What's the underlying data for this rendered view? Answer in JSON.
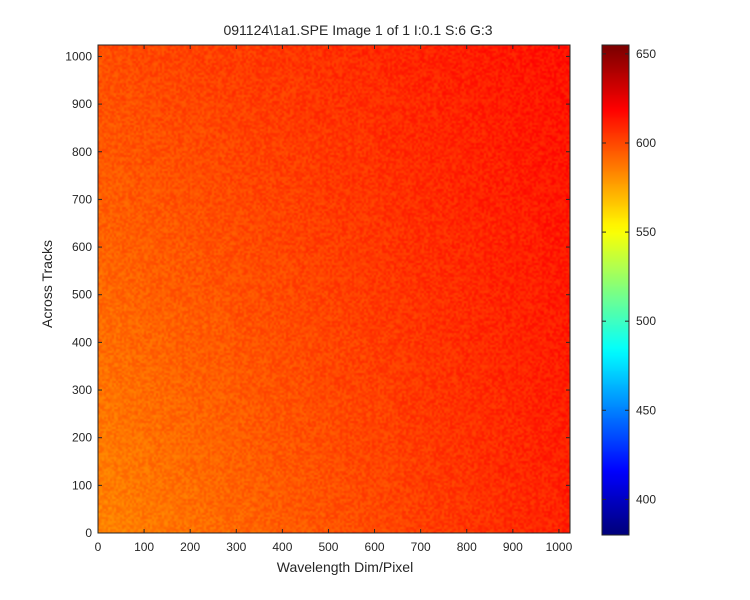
{
  "window": {
    "background": "#ffffff"
  },
  "chart_data": {
    "type": "heatmap",
    "title": "091124\\1a1.SPE  Image 1 of 1  I:0.1  S:6  G:3",
    "xlabel": "Wavelength Dim/Pixel",
    "ylabel": "Across Tracks",
    "xlim": [
      0,
      1024
    ],
    "ylim": [
      0,
      1024
    ],
    "x_ticks": [
      0,
      100,
      200,
      300,
      400,
      500,
      600,
      700,
      800,
      900,
      1000
    ],
    "y_ticks": [
      0,
      100,
      200,
      300,
      400,
      500,
      600,
      700,
      800,
      900,
      1000
    ],
    "y_direction": "bottom-to-top",
    "grid": false,
    "colormap": "jet",
    "colorbar": {
      "range": [
        380,
        655
      ],
      "ticks": [
        400,
        450,
        500,
        550,
        600,
        650
      ],
      "position": "right"
    },
    "value_field": {
      "description_level": "smooth gradient with pixel noise",
      "corners": {
        "bottom_left": 585,
        "top_left": 600,
        "bottom_right": 612,
        "top_right": 616
      },
      "noise_amplitude": 6
    }
  }
}
